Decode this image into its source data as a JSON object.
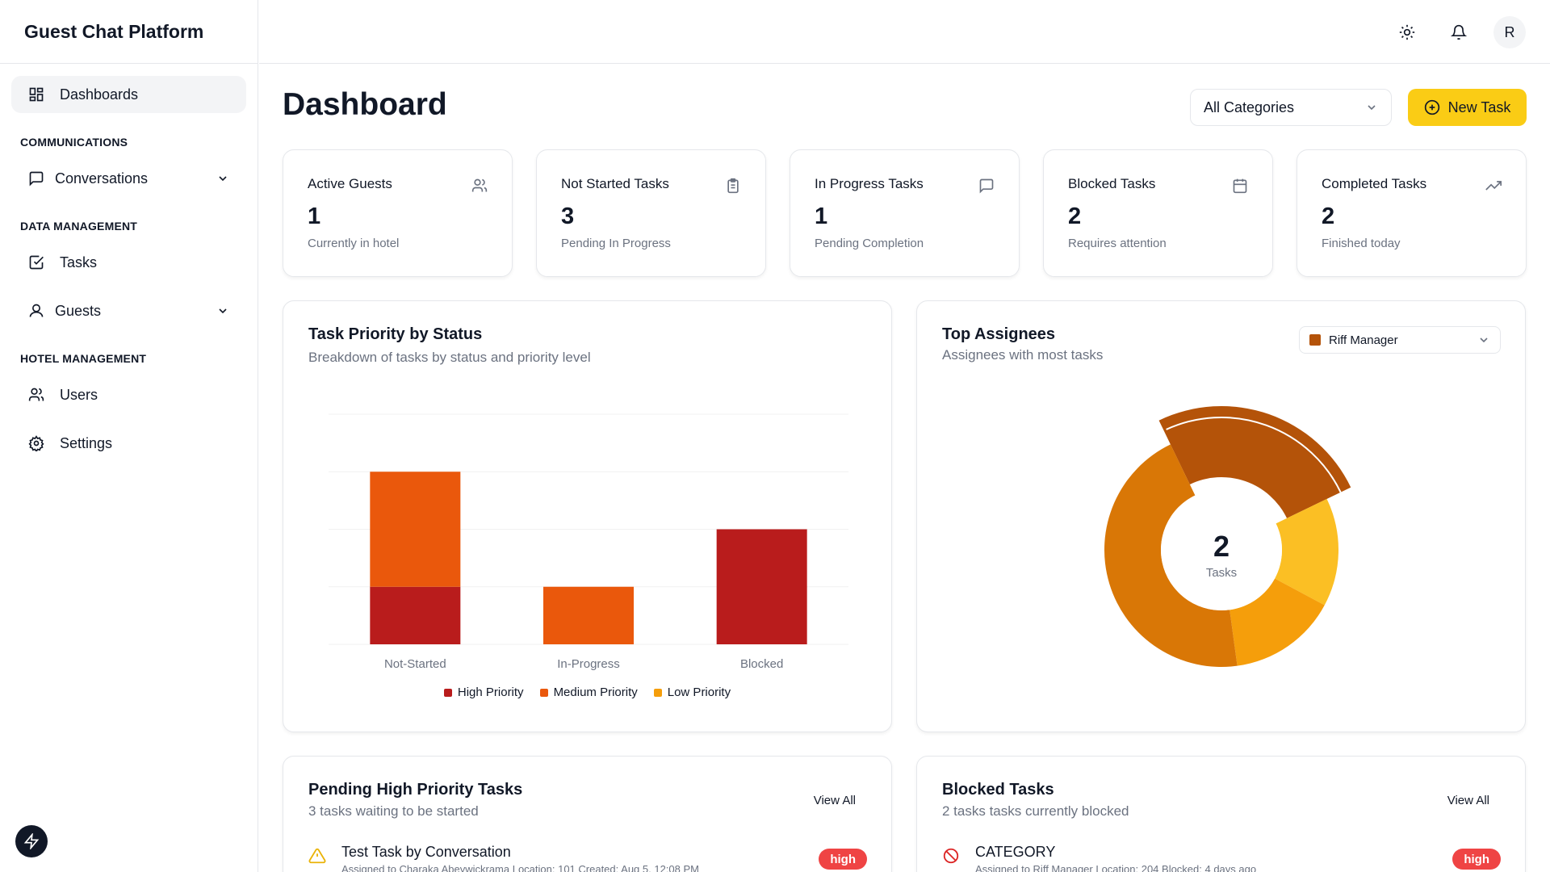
{
  "app": {
    "title": "Guest Chat Platform"
  },
  "sidebar": {
    "dashboards": "Dashboards",
    "sections": {
      "communications": "COMMUNICATIONS",
      "data_management": "DATA MANAGEMENT",
      "hotel_management": "HOTEL MANAGEMENT"
    },
    "items": {
      "conversations": "Conversations",
      "tasks": "Tasks",
      "guests": "Guests",
      "users": "Users",
      "settings": "Settings"
    }
  },
  "header": {
    "avatar_initial": "R"
  },
  "page": {
    "title": "Dashboard",
    "category_filter": "All Categories",
    "new_task_label": "New Task"
  },
  "stats": [
    {
      "label": "Active Guests",
      "value": "1",
      "sub": "Currently in hotel",
      "icon": "users-icon"
    },
    {
      "label": "Not Started Tasks",
      "value": "3",
      "sub": "Pending In Progress",
      "icon": "clipboard-icon"
    },
    {
      "label": "In Progress Tasks",
      "value": "1",
      "sub": "Pending Completion",
      "icon": "message-icon"
    },
    {
      "label": "Blocked Tasks",
      "value": "2",
      "sub": "Requires attention",
      "icon": "calendar-icon"
    },
    {
      "label": "Completed Tasks",
      "value": "2",
      "sub": "Finished today",
      "icon": "trending-up-icon"
    }
  ],
  "chart_data": [
    {
      "type": "bar",
      "stacked": true,
      "title": "Task Priority by Status",
      "subtitle": "Breakdown of tasks by status and priority level",
      "categories": [
        "Not-Started",
        "In-Progress",
        "Blocked"
      ],
      "series": [
        {
          "name": "High Priority",
          "color": "#b91c1c",
          "values": [
            1,
            0,
            2
          ]
        },
        {
          "name": "Medium Priority",
          "color": "#ea580c",
          "values": [
            2,
            1,
            0
          ]
        },
        {
          "name": "Low Priority",
          "color": "#f59e0b",
          "values": [
            0,
            0,
            0
          ]
        }
      ],
      "ylim": [
        0,
        4
      ]
    },
    {
      "type": "pie",
      "title": "Top Assignees",
      "subtitle": "Assignees with most tasks",
      "selected": "Riff Manager",
      "center_value": "2",
      "center_label": "Tasks",
      "slices": [
        {
          "value": 0.25,
          "color": "#b45309",
          "highlighted": true
        },
        {
          "value": 0.15,
          "color": "#fbbf24"
        },
        {
          "value": 0.15,
          "color": "#f59e0b"
        },
        {
          "value": 0.45,
          "color": "#d97706"
        }
      ]
    }
  ],
  "chart_colors": {
    "selected_swatch": "#b45309"
  },
  "pending_tasks": {
    "title": "Pending High Priority Tasks",
    "subtitle": "3 tasks waiting to be started",
    "view_all": "View All",
    "row": {
      "name": "Test Task by Conversation",
      "meta": "Assigned to Charaka Abeywickrama     Location: 101     Created: Aug 5, 12:08 PM",
      "badge": "high"
    }
  },
  "blocked_tasks": {
    "title": "Blocked Tasks",
    "subtitle": "2 tasks tasks currently blocked",
    "view_all": "View All",
    "row": {
      "name": "CATEGORY",
      "meta": "Assigned to Riff Manager     Location: 204     Blocked: 4 days ago",
      "badge": "high"
    }
  },
  "colors": {
    "accent": "#facc15",
    "danger": "#ef4444"
  }
}
